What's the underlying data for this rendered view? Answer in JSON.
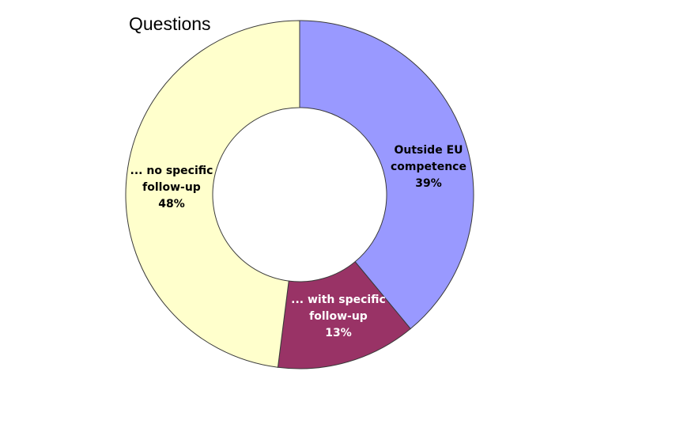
{
  "chart_data": {
    "type": "pie",
    "donut": true,
    "title": "Questions",
    "slices": [
      {
        "label_lines": [
          "Outside EU",
          "competence"
        ],
        "percent_label": "39%",
        "value": 39,
        "color": "#9999ff",
        "text_color": "#000000"
      },
      {
        "label_lines": [
          "... with specific",
          "follow-up"
        ],
        "percent_label": "13%",
        "value": 13,
        "color": "#993366",
        "text_color": "#ffffff"
      },
      {
        "label_lines": [
          "... no specific",
          "follow-up"
        ],
        "percent_label": "48%",
        "value": 48,
        "color": "#ffffcc",
        "text_color": "#000000"
      }
    ],
    "legend": "none"
  }
}
